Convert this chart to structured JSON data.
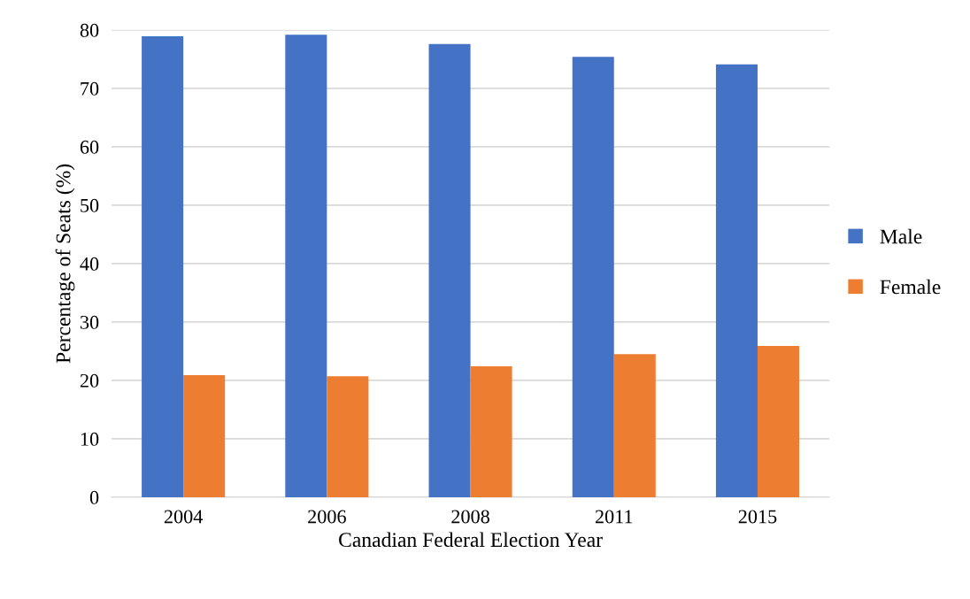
{
  "chart_data": {
    "type": "bar",
    "xlabel": "Canadian Federal Election Year",
    "ylabel": "Percentage of Seats (%)",
    "categories": [
      "2004",
      "2006",
      "2008",
      "2011",
      "2015"
    ],
    "series": [
      {
        "name": "Male",
        "color": "#4472c4",
        "values": [
          78.9,
          79.2,
          77.6,
          75.4,
          74.1
        ]
      },
      {
        "name": "Female",
        "color": "#ed7d31",
        "values": [
          20.9,
          20.7,
          22.4,
          24.5,
          25.9
        ]
      }
    ],
    "ylim": [
      0,
      80
    ],
    "yticks": [
      0,
      10,
      20,
      30,
      40,
      50,
      60,
      70,
      80
    ],
    "grid": "y",
    "legend": "right"
  }
}
